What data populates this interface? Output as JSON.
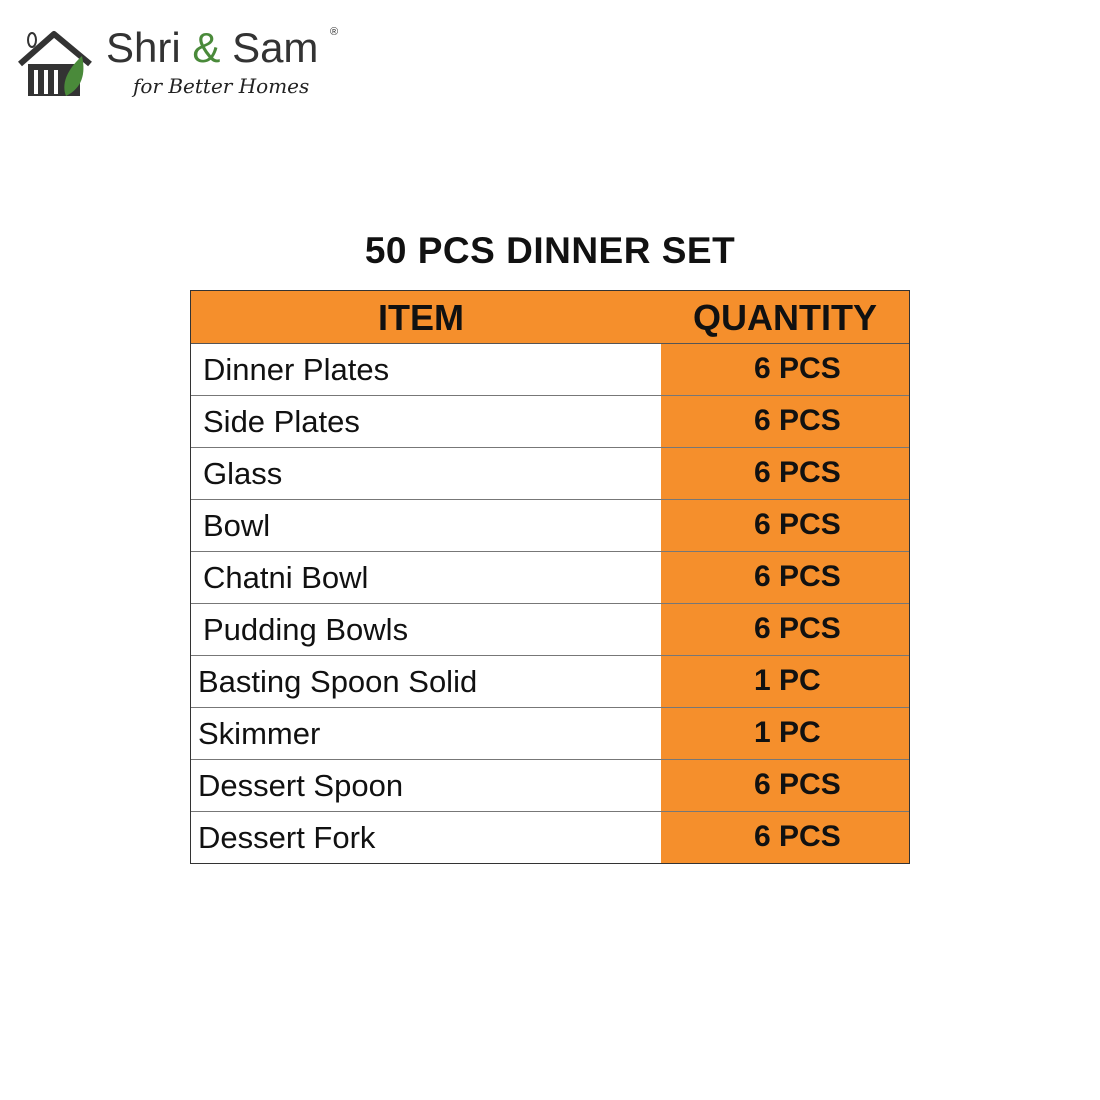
{
  "brand": {
    "name_part1": "Shri",
    "amp": "&",
    "name_part2": "Sam",
    "registered": "®",
    "tagline": "for Better Homes"
  },
  "title": "50 PCS DINNER SET",
  "table": {
    "headers": {
      "item": "ITEM",
      "quantity": "QUANTITY"
    },
    "rows": [
      {
        "item": "Dinner Plates",
        "quantity": "6 PCS"
      },
      {
        "item": "Side Plates",
        "quantity": "6 PCS"
      },
      {
        "item": "Glass",
        "quantity": "6 PCS"
      },
      {
        "item": "Bowl",
        "quantity": "6 PCS"
      },
      {
        "item": "Chatni Bowl",
        "quantity": "6 PCS"
      },
      {
        "item": "Pudding Bowls",
        "quantity": "6 PCS"
      },
      {
        "item": "Basting Spoon Solid",
        "quantity": "1 PC"
      },
      {
        "item": "Skimmer",
        "quantity": "1 PC"
      },
      {
        "item": "Dessert Spoon",
        "quantity": "6 PCS"
      },
      {
        "item": "Dessert Fork",
        "quantity": "6 PCS"
      }
    ]
  },
  "colors": {
    "accent": "#f58f2c",
    "brand_green": "#4a8a3a"
  }
}
